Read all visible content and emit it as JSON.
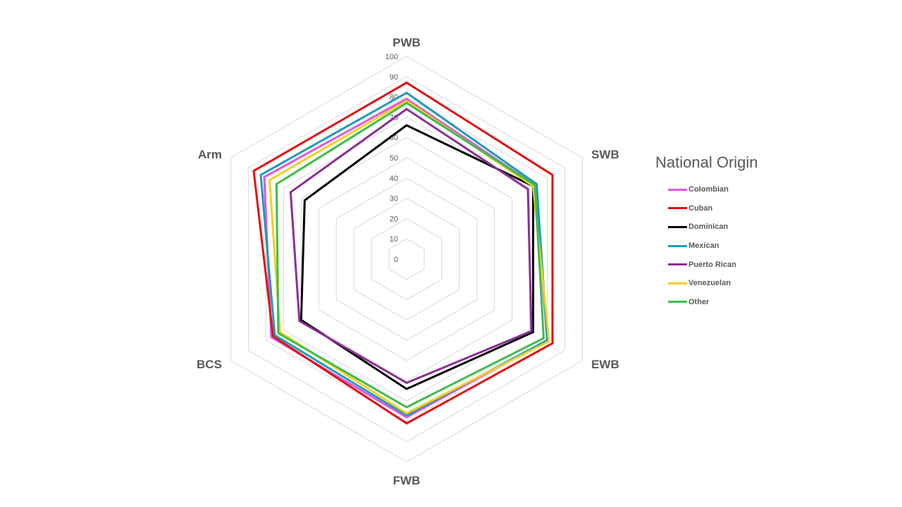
{
  "chart_data": {
    "type": "radar",
    "axes": [
      "PWB",
      "SWB",
      "EWB",
      "FWB",
      "BCS",
      "Arm"
    ],
    "rlim": [
      0,
      100
    ],
    "ticks": [
      0,
      10,
      20,
      30,
      40,
      50,
      60,
      70,
      80,
      90,
      100
    ],
    "grid": true,
    "legend": {
      "title": "National Origin",
      "position": "right"
    },
    "series": [
      {
        "name": "Colombian",
        "color": "#E056E0",
        "values": [
          79,
          73,
          80,
          78,
          77,
          81
        ]
      },
      {
        "name": "Cuban",
        "color": "#E01010",
        "values": [
          87,
          83,
          83,
          81,
          76,
          87
        ]
      },
      {
        "name": "Dominican",
        "color": "#000000",
        "values": [
          66,
          72,
          72,
          64,
          60,
          58
        ]
      },
      {
        "name": "Mexican",
        "color": "#1E9BB8",
        "values": [
          82,
          74,
          80,
          77,
          75,
          83
        ]
      },
      {
        "name": "Puerto Rican",
        "color": "#8C2E96",
        "values": [
          74,
          69,
          71,
          61,
          61,
          66
        ]
      },
      {
        "name": "Venezuelan",
        "color": "#F5D01E",
        "values": [
          78,
          72,
          81,
          76,
          72,
          78
        ]
      },
      {
        "name": "Other",
        "color": "#3DBE4A",
        "values": [
          77,
          73,
          78,
          73,
          73,
          74
        ]
      }
    ]
  }
}
